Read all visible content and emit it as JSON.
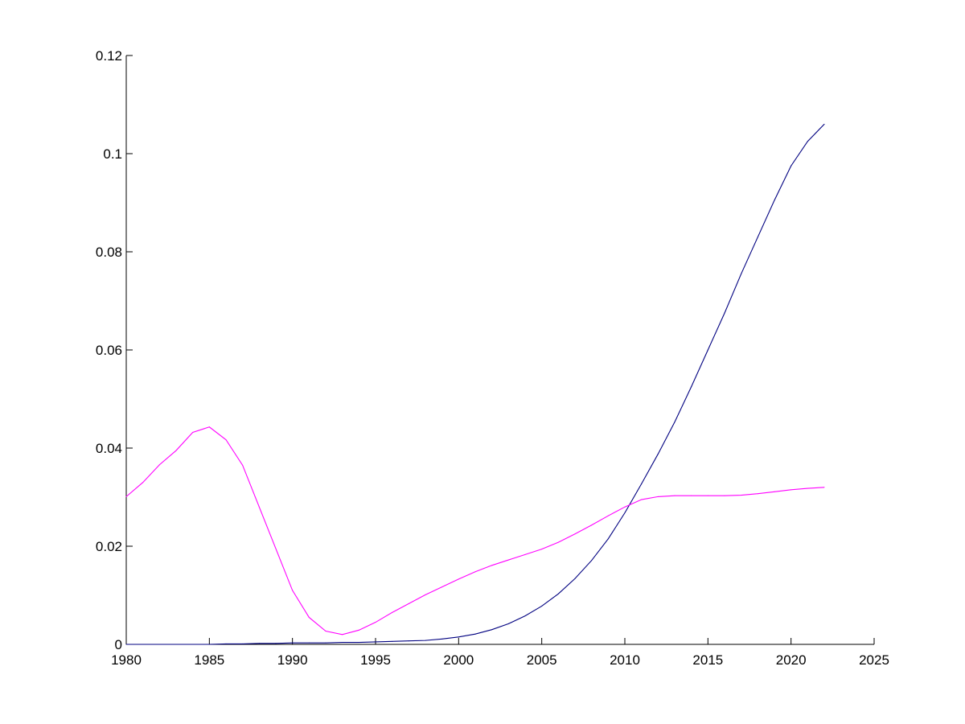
{
  "chart_data": {
    "type": "line",
    "title": "",
    "xlabel": "",
    "ylabel": "",
    "xlim": [
      1980,
      2025
    ],
    "ylim": [
      0,
      0.12
    ],
    "xticks": [
      "1980",
      "1985",
      "1990",
      "1995",
      "2000",
      "2005",
      "2010",
      "2015",
      "2020",
      "2025"
    ],
    "yticks": [
      "0",
      "0.02",
      "0.04",
      "0.06",
      "0.08",
      "0.1",
      "0.12"
    ],
    "grid": false,
    "legend": "none",
    "x": [
      1980,
      1981,
      1982,
      1983,
      1984,
      1985,
      1986,
      1987,
      1988,
      1989,
      1990,
      1991,
      1992,
      1993,
      1994,
      1995,
      1996,
      1997,
      1998,
      1999,
      2000,
      2001,
      2002,
      2003,
      2004,
      2005,
      2006,
      2007,
      2008,
      2009,
      2010,
      2011,
      2012,
      2013,
      2014,
      2015,
      2016,
      2017,
      2018,
      2019,
      2020,
      2021,
      2022
    ],
    "series": [
      {
        "color": "#000080",
        "values": [
          0,
          0,
          0,
          0,
          0,
          0,
          0.0001,
          0.0001,
          0.0002,
          0.0002,
          0.0003,
          0.0003,
          0.0003,
          0.0004,
          0.0004,
          0.0005,
          0.0006,
          0.0007,
          0.0008,
          0.0011,
          0.0015,
          0.0021,
          0.003,
          0.0042,
          0.0058,
          0.0078,
          0.0103,
          0.0134,
          0.0171,
          0.0215,
          0.0268,
          0.0327,
          0.0388,
          0.0453,
          0.0525,
          0.06,
          0.0675,
          0.0755,
          0.083,
          0.0905,
          0.0975,
          0.1025,
          0.106
        ]
      },
      {
        "color": "#ff00ff",
        "values": [
          0.0301,
          0.033,
          0.0366,
          0.0395,
          0.0432,
          0.0443,
          0.0417,
          0.0365,
          0.028,
          0.0195,
          0.011,
          0.0055,
          0.0027,
          0.002,
          0.0029,
          0.0045,
          0.0065,
          0.0083,
          0.0101,
          0.0117,
          0.0133,
          0.0148,
          0.0161,
          0.0172,
          0.0183,
          0.0194,
          0.0208,
          0.0225,
          0.0243,
          0.0262,
          0.028,
          0.0295,
          0.0301,
          0.0303,
          0.0303,
          0.0303,
          0.0303,
          0.0304,
          0.0307,
          0.0311,
          0.0315,
          0.0318,
          0.032
        ]
      }
    ]
  }
}
